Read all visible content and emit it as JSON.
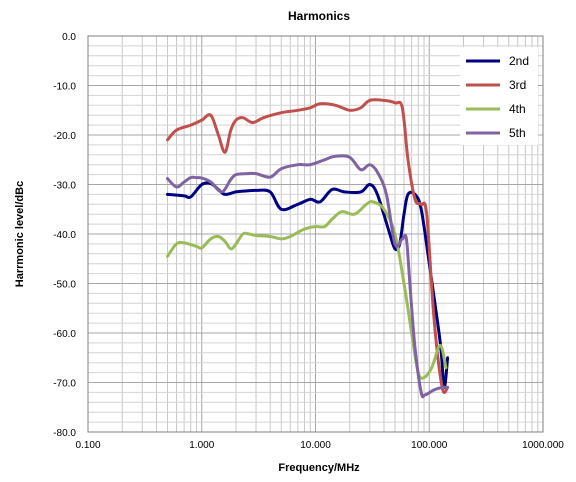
{
  "chart_data": {
    "type": "line",
    "title": "Harmonics",
    "xlabel": "Frequency/MHz",
    "ylabel": "Harrmonic level/dBc",
    "x_scale": "log",
    "xlim": [
      0.1,
      1000
    ],
    "ylim": [
      -80,
      0
    ],
    "x_ticks": [
      "0.100",
      "1.000",
      "10.000",
      "100.000",
      "1000.000"
    ],
    "y_ticks": [
      "0.0",
      "-10.0",
      "-20.0",
      "-30.0",
      "-40.0",
      "-50.0",
      "-60.0",
      "-70.0",
      "-80.0"
    ],
    "grid": true,
    "legend_position": "top-right",
    "series": [
      {
        "name": "2nd",
        "color": "#000080",
        "points": [
          [
            0.5,
            -32
          ],
          [
            0.7,
            -32.3
          ],
          [
            0.8,
            -32.5
          ],
          [
            1.0,
            -30
          ],
          [
            1.2,
            -29.8
          ],
          [
            1.4,
            -31
          ],
          [
            1.6,
            -32
          ],
          [
            2.0,
            -31.5
          ],
          [
            2.5,
            -31.3
          ],
          [
            3.0,
            -31.2
          ],
          [
            4.0,
            -31.5
          ],
          [
            5.0,
            -35
          ],
          [
            7.0,
            -34
          ],
          [
            9.0,
            -33
          ],
          [
            11.0,
            -33.5
          ],
          [
            14.0,
            -31
          ],
          [
            18.0,
            -31.5
          ],
          [
            25.0,
            -31.5
          ],
          [
            30.0,
            -30
          ],
          [
            35.0,
            -32
          ],
          [
            45.0,
            -40
          ],
          [
            50.0,
            -43
          ],
          [
            55.0,
            -42
          ],
          [
            60.0,
            -36
          ],
          [
            65.0,
            -32
          ],
          [
            75.0,
            -32
          ],
          [
            85.0,
            -35
          ],
          [
            100.0,
            -46
          ],
          [
            125.0,
            -62
          ],
          [
            135.0,
            -71
          ],
          [
            145.0,
            -65
          ]
        ]
      },
      {
        "name": "3rd",
        "color": "#c0504d",
        "points": [
          [
            0.5,
            -21
          ],
          [
            0.6,
            -19
          ],
          [
            0.8,
            -18
          ],
          [
            1.0,
            -17
          ],
          [
            1.2,
            -16
          ],
          [
            1.4,
            -20
          ],
          [
            1.6,
            -23.5
          ],
          [
            1.8,
            -19
          ],
          [
            2.0,
            -17
          ],
          [
            2.3,
            -16.5
          ],
          [
            2.8,
            -17.5
          ],
          [
            3.5,
            -16.5
          ],
          [
            5.0,
            -15.5
          ],
          [
            7.0,
            -15
          ],
          [
            9.0,
            -14.5
          ],
          [
            11.0,
            -13.7
          ],
          [
            15.0,
            -14
          ],
          [
            20.0,
            -15
          ],
          [
            25.0,
            -14.5
          ],
          [
            30.0,
            -13
          ],
          [
            40.0,
            -13
          ],
          [
            50.0,
            -13.5
          ],
          [
            58.0,
            -14.5
          ],
          [
            65.0,
            -25
          ],
          [
            75.0,
            -33
          ],
          [
            85.0,
            -34
          ],
          [
            95.0,
            -36
          ],
          [
            110.0,
            -57
          ],
          [
            130.0,
            -71
          ],
          [
            145.0,
            -71
          ]
        ]
      },
      {
        "name": "4th",
        "color": "#9bbb59",
        "points": [
          [
            0.5,
            -44.5
          ],
          [
            0.6,
            -42
          ],
          [
            0.7,
            -41.8
          ],
          [
            0.9,
            -42.5
          ],
          [
            1.0,
            -42.8
          ],
          [
            1.2,
            -41
          ],
          [
            1.4,
            -40.5
          ],
          [
            1.6,
            -41.5
          ],
          [
            1.8,
            -43
          ],
          [
            2.0,
            -42
          ],
          [
            2.3,
            -40
          ],
          [
            2.6,
            -40
          ],
          [
            3.0,
            -40.3
          ],
          [
            4.0,
            -40.5
          ],
          [
            5.0,
            -41
          ],
          [
            6.0,
            -40.5
          ],
          [
            8.0,
            -39
          ],
          [
            10.0,
            -38.5
          ],
          [
            12.0,
            -38.5
          ],
          [
            14.0,
            -37
          ],
          [
            17.0,
            -35.5
          ],
          [
            22.0,
            -36
          ],
          [
            28.0,
            -34
          ],
          [
            32.0,
            -33.5
          ],
          [
            40.0,
            -35
          ],
          [
            50.0,
            -40
          ],
          [
            60.0,
            -50
          ],
          [
            70.0,
            -60
          ],
          [
            80.0,
            -68
          ],
          [
            90.0,
            -69
          ],
          [
            105.0,
            -67
          ],
          [
            125.0,
            -62.5
          ],
          [
            140.0,
            -67
          ]
        ]
      },
      {
        "name": "5th",
        "color": "#8064a2",
        "points": [
          [
            0.5,
            -28.8
          ],
          [
            0.6,
            -30.5
          ],
          [
            0.7,
            -29.5
          ],
          [
            0.8,
            -28.6
          ],
          [
            0.9,
            -28.6
          ],
          [
            1.0,
            -28.7
          ],
          [
            1.2,
            -29.5
          ],
          [
            1.5,
            -31.5
          ],
          [
            1.8,
            -29
          ],
          [
            2.0,
            -28
          ],
          [
            2.5,
            -27.8
          ],
          [
            3.0,
            -27.8
          ],
          [
            4.0,
            -28.5
          ],
          [
            5.0,
            -26.8
          ],
          [
            7.0,
            -26
          ],
          [
            9.0,
            -26
          ],
          [
            12.0,
            -25
          ],
          [
            15.0,
            -24.3
          ],
          [
            20.0,
            -24.5
          ],
          [
            25.0,
            -27
          ],
          [
            30.0,
            -26
          ],
          [
            35.0,
            -27.5
          ],
          [
            42.0,
            -32
          ],
          [
            50.0,
            -42
          ],
          [
            58.0,
            -41
          ],
          [
            63.0,
            -41
          ],
          [
            68.0,
            -51
          ],
          [
            75.0,
            -63
          ],
          [
            85.0,
            -72
          ],
          [
            92.0,
            -72.5
          ],
          [
            110.0,
            -71.5
          ],
          [
            130.0,
            -71
          ],
          [
            145.0,
            -71
          ]
        ]
      }
    ]
  }
}
